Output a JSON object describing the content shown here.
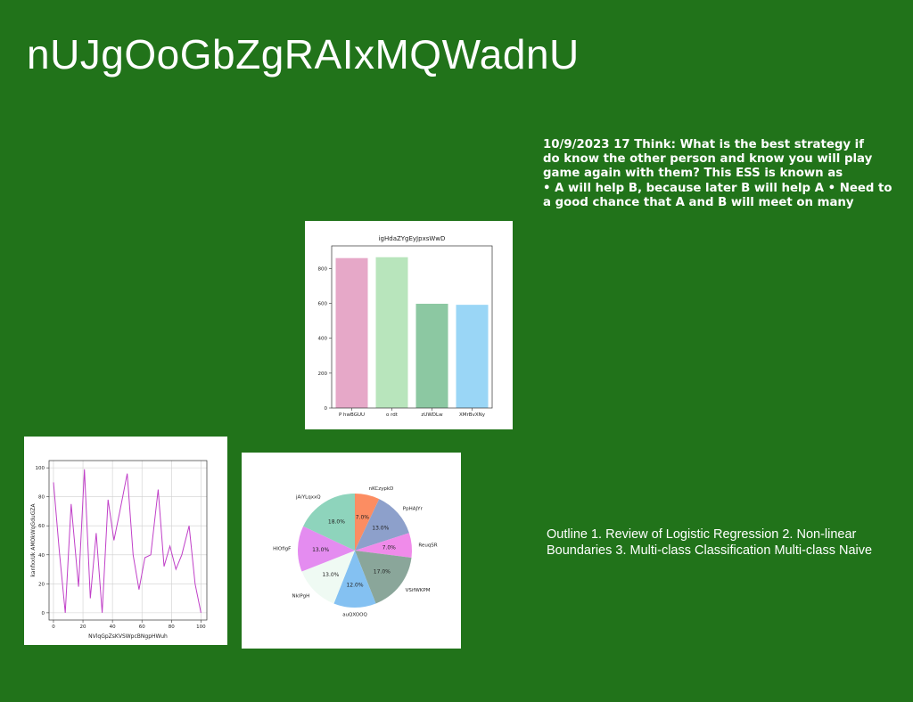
{
  "slide": {
    "title": "nUJgOoGbZgRAIxMQWadnU",
    "think_lines": [
      "10/9/2023 17 Think: What is the best strategy if",
      "do know the other person and know you will play",
      "game again with them? This ESS is known as",
      "• A will help B, because later B will help A • Need to",
      "a good chance that A and B will meet on many"
    ],
    "outline_lines": [
      "Outline 1. Review of Logistic Regression 2. Non-linear",
      "Boundaries 3. Multi-class Classification Multi-class Naive"
    ]
  },
  "chart_data": [
    {
      "type": "bar",
      "title": "igHdaZYgEyJpxsWwD",
      "categories": [
        "P hwBGUU",
        "o rdt",
        "zUWDLw",
        "XMrBvXNy"
      ],
      "values": [
        860,
        865,
        598,
        592
      ],
      "colors": [
        "#e6a8c8",
        "#b8e5bc",
        "#8cc8a2",
        "#9ad6f6"
      ],
      "ylim": [
        0,
        930
      ],
      "yticks": [
        0,
        200,
        400,
        600,
        800
      ],
      "xlabel": "",
      "ylabel": ""
    },
    {
      "type": "line",
      "title": "",
      "xlabel": "NVlqGpZsKVSWpcBNgpHWuh",
      "ylabel": "kanfxxUk AMOkWqGduGZA",
      "color": "#c040c8",
      "grid": true,
      "x": [
        0,
        4,
        8,
        12,
        17,
        21,
        25,
        29,
        33,
        37,
        41,
        45,
        50,
        54,
        58,
        62,
        66,
        71,
        75,
        79,
        83,
        87,
        92,
        96,
        100
      ],
      "y": [
        90,
        42,
        0,
        75,
        18,
        99,
        10,
        55,
        0,
        78,
        50,
        70,
        96,
        40,
        16,
        38,
        40,
        85,
        32,
        46,
        30,
        40,
        60,
        20,
        0
      ],
      "xlim": [
        -3,
        104
      ],
      "ylim": [
        -5,
        105
      ],
      "xticks": [
        0,
        20,
        40,
        60,
        80,
        100
      ],
      "yticks": [
        0,
        20,
        40,
        60,
        80,
        100
      ]
    },
    {
      "type": "pie",
      "title": "",
      "slices": [
        {
          "label": "nKCzypkD",
          "value": 7.0,
          "pct": "7.0%",
          "color": "#fc8d62"
        },
        {
          "label": "PpHAJYr",
          "value": 13.0,
          "pct": "13.0%",
          "color": "#8da0cb"
        },
        {
          "label": "ReuqSR",
          "value": 7.0,
          "pct": "7.0%",
          "color": "#f08bea"
        },
        {
          "label": "VSifWKPM",
          "value": 17.0,
          "pct": "17.0%",
          "color": "#8aa69a"
        },
        {
          "label": "auQXOOQ",
          "value": 12.0,
          "pct": "12.0%",
          "color": "#84c1f2"
        },
        {
          "label": "NklPgH",
          "value": 13.0,
          "pct": "13.0%",
          "color": "#effaf3"
        },
        {
          "label": "HIOfigF",
          "value": 13.0,
          "pct": "13.0%",
          "color": "#e48cf0"
        },
        {
          "label": "jAiYLqxxQ",
          "value": 18.0,
          "pct": "18.0%",
          "color": "#8ed4bc"
        }
      ]
    }
  ]
}
